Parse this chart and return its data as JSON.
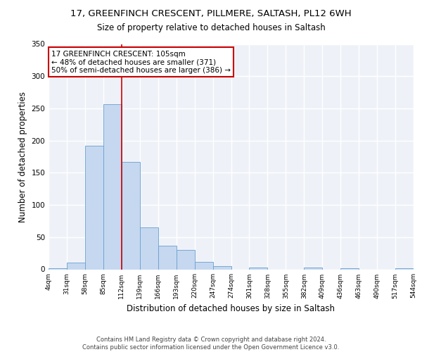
{
  "title1": "17, GREENFINCH CRESCENT, PILLMERE, SALTASH, PL12 6WH",
  "title2": "Size of property relative to detached houses in Saltash",
  "xlabel": "Distribution of detached houses by size in Saltash",
  "ylabel": "Number of detached properties",
  "xtick_labels": [
    "4sqm",
    "31sqm",
    "58sqm",
    "85sqm",
    "112sqm",
    "139sqm",
    "166sqm",
    "193sqm",
    "220sqm",
    "247sqm",
    "274sqm",
    "301sqm",
    "328sqm",
    "355sqm",
    "382sqm",
    "409sqm",
    "436sqm",
    "463sqm",
    "490sqm",
    "517sqm",
    "544sqm"
  ],
  "bar_values": [
    2,
    10,
    192,
    256,
    167,
    65,
    37,
    30,
    12,
    5,
    0,
    3,
    0,
    0,
    3,
    0,
    2,
    0,
    0,
    2
  ],
  "bar_color": "#c5d8f0",
  "bar_edge_color": "#6a9fcf",
  "red_line_x": 4,
  "annotation_text": "17 GREENFINCH CRESCENT: 105sqm\n← 48% of detached houses are smaller (371)\n50% of semi-detached houses are larger (386) →",
  "annotation_box_color": "#ffffff",
  "annotation_box_edge_color": "#cc0000",
  "footer_text": "Contains HM Land Registry data © Crown copyright and database right 2024.\nContains public sector information licensed under the Open Government Licence v3.0.",
  "bg_color": "#eef2f8",
  "grid_color": "#ffffff",
  "ylim": [
    0,
    350
  ],
  "title1_fontsize": 9.5,
  "title2_fontsize": 8.5,
  "xlabel_fontsize": 8.5,
  "ylabel_fontsize": 8.5,
  "footer_fontsize": 6.0,
  "annot_fontsize": 7.5
}
